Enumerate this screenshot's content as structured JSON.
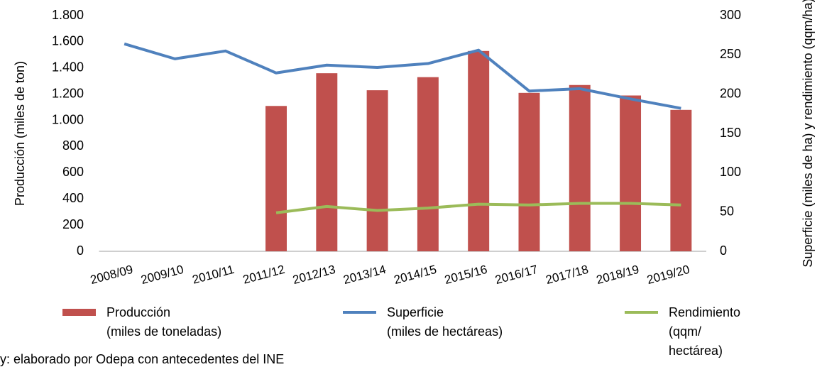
{
  "chart_data": {
    "type": "bar-line",
    "ylabel": "Producción (miles de ton)",
    "y2label": "Superficie (miles de ha) y rendimiento (qqm/ha)",
    "note": "y: elaborado por Odepa con antecedentes del INE",
    "categories": [
      "2008/09",
      "2009/10",
      "2010/11",
      "2011/12",
      "2012/13",
      "2013/14",
      "2014/15",
      "2015/16",
      "2016/17",
      "2017/18",
      "2018/19",
      "2019/20"
    ],
    "series": [
      {
        "name": "Producción\n(miles de toneladas)",
        "type": "bar",
        "color": "#c0504d",
        "values": [
          null,
          null,
          null,
          1110,
          1360,
          1230,
          1330,
          1530,
          1210,
          1270,
          1190,
          1080
        ]
      },
      {
        "name": "Superficie\n(miles de hectáreas)",
        "type": "line",
        "axis": "y2",
        "color": "#4f81bd",
        "values": [
          264,
          245,
          255,
          227,
          237,
          234,
          239,
          256,
          204,
          207,
          194,
          182
        ]
      },
      {
        "name": "Rendimiento\n(qqm/\nhectárea)",
        "type": "line",
        "axis": "y2",
        "color": "#9bbb59",
        "values": [
          null,
          null,
          null,
          49,
          57,
          52,
          55,
          60,
          59,
          61,
          61,
          59
        ]
      }
    ],
    "ylim": [
      0,
      1800
    ],
    "yticks": [
      0,
      200,
      400,
      600,
      800,
      {
        "value": 1000,
        "label": "1.000"
      },
      {
        "value": 1200,
        "label": "1.200"
      },
      {
        "value": 1400,
        "label": "1.400"
      },
      {
        "value": 1600,
        "label": "1.600"
      },
      {
        "value": 1800,
        "label": "1.800"
      }
    ],
    "y2lim": [
      0,
      300
    ],
    "y2ticks": [
      0,
      50,
      100,
      150,
      200,
      250,
      300
    ],
    "legend": "bottom"
  }
}
